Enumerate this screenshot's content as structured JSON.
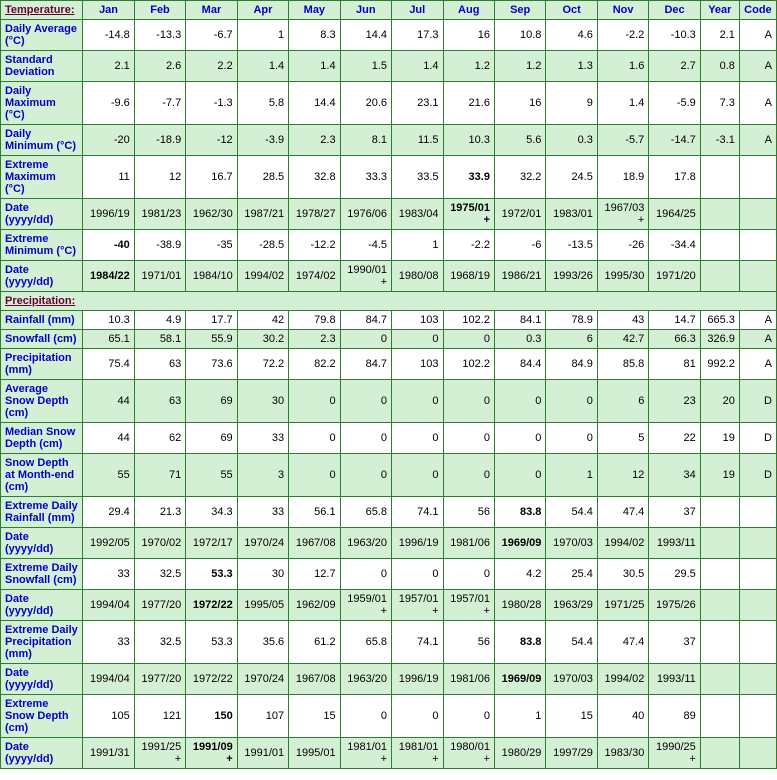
{
  "columns": [
    "Jan",
    "Feb",
    "Mar",
    "Apr",
    "May",
    "Jun",
    "Jul",
    "Aug",
    "Sep",
    "Oct",
    "Nov",
    "Dec",
    "Year",
    "Code"
  ],
  "sections": [
    {
      "title": "Temperature:",
      "rows": [
        {
          "label": "Daily Average (°C)",
          "shade": false,
          "cells": [
            "-14.8",
            "-13.3",
            "-6.7",
            "1",
            "8.3",
            "14.4",
            "17.3",
            "16",
            "10.8",
            "4.6",
            "-2.2",
            "-10.3",
            "2.1",
            "A"
          ]
        },
        {
          "label": "Standard Deviation",
          "shade": true,
          "cells": [
            "2.1",
            "2.6",
            "2.2",
            "1.4",
            "1.4",
            "1.5",
            "1.4",
            "1.2",
            "1.2",
            "1.3",
            "1.6",
            "2.7",
            "0.8",
            "A"
          ]
        },
        {
          "label": "Daily Maximum (°C)",
          "shade": false,
          "cells": [
            "-9.6",
            "-7.7",
            "-1.3",
            "5.8",
            "14.4",
            "20.6",
            "23.1",
            "21.6",
            "16",
            "9",
            "1.4",
            "-5.9",
            "7.3",
            "A"
          ]
        },
        {
          "label": "Daily Minimum (°C)",
          "shade": true,
          "cells": [
            "-20",
            "-18.9",
            "-12",
            "-3.9",
            "2.3",
            "8.1",
            "11.5",
            "10.3",
            "5.6",
            "0.3",
            "-5.7",
            "-14.7",
            "-3.1",
            "A"
          ]
        },
        {
          "label": "Extreme Maximum (°C)",
          "shade": false,
          "cells": [
            "11",
            "12",
            "16.7",
            "28.5",
            "32.8",
            "33.3",
            "33.5",
            "33.9",
            "32.2",
            "24.5",
            "18.9",
            "17.8",
            "",
            ""
          ],
          "bold": [
            7
          ]
        },
        {
          "label": "Date (yyyy/dd)",
          "shade": true,
          "cells": [
            "1996/19",
            "1981/23",
            "1962/30",
            "1987/21",
            "1978/27",
            "1976/06",
            "1983/04",
            "1975/01+",
            "1972/01",
            "1983/01",
            "1967/03+",
            "1964/25",
            "",
            ""
          ],
          "bold": [
            7
          ]
        },
        {
          "label": "Extreme Minimum (°C)",
          "shade": false,
          "cells": [
            "-40",
            "-38.9",
            "-35",
            "-28.5",
            "-12.2",
            "-4.5",
            "1",
            "-2.2",
            "-6",
            "-13.5",
            "-26",
            "-34.4",
            "",
            ""
          ],
          "bold": [
            0
          ]
        },
        {
          "label": "Date (yyyy/dd)",
          "shade": true,
          "cells": [
            "1984/22",
            "1971/01",
            "1984/10",
            "1994/02",
            "1974/02",
            "1990/01+",
            "1980/08",
            "1968/19",
            "1986/21",
            "1993/26",
            "1995/30",
            "1971/20",
            "",
            ""
          ],
          "bold": [
            0
          ]
        }
      ]
    },
    {
      "title": "Precipitation:",
      "rows": [
        {
          "label": "Rainfall (mm)",
          "shade": false,
          "cells": [
            "10.3",
            "4.9",
            "17.7",
            "42",
            "79.8",
            "84.7",
            "103",
            "102.2",
            "84.1",
            "78.9",
            "43",
            "14.7",
            "665.3",
            "A"
          ]
        },
        {
          "label": "Snowfall (cm)",
          "shade": true,
          "cells": [
            "65.1",
            "58.1",
            "55.9",
            "30.2",
            "2.3",
            "0",
            "0",
            "0",
            "0.3",
            "6",
            "42.7",
            "66.3",
            "326.9",
            "A"
          ]
        },
        {
          "label": "Precipitation (mm)",
          "shade": false,
          "cells": [
            "75.4",
            "63",
            "73.6",
            "72.2",
            "82.2",
            "84.7",
            "103",
            "102.2",
            "84.4",
            "84.9",
            "85.8",
            "81",
            "992.2",
            "A"
          ]
        },
        {
          "label": "Average Snow Depth (cm)",
          "shade": true,
          "cells": [
            "44",
            "63",
            "69",
            "30",
            "0",
            "0",
            "0",
            "0",
            "0",
            "0",
            "6",
            "23",
            "20",
            "D"
          ]
        },
        {
          "label": "Median Snow Depth (cm)",
          "shade": false,
          "cells": [
            "44",
            "62",
            "69",
            "33",
            "0",
            "0",
            "0",
            "0",
            "0",
            "0",
            "5",
            "22",
            "19",
            "D"
          ]
        },
        {
          "label": "Snow Depth at Month-end (cm)",
          "shade": true,
          "cells": [
            "55",
            "71",
            "55",
            "3",
            "0",
            "0",
            "0",
            "0",
            "0",
            "1",
            "12",
            "34",
            "19",
            "D"
          ]
        },
        {
          "label": "Extreme Daily Rainfall (mm)",
          "shade": false,
          "cells": [
            "29.4",
            "21.3",
            "34.3",
            "33",
            "56.1",
            "65.8",
            "74.1",
            "56",
            "83.8",
            "54.4",
            "47.4",
            "37",
            "",
            ""
          ],
          "bold": [
            8
          ]
        },
        {
          "label": "Date (yyyy/dd)",
          "shade": true,
          "cells": [
            "1992/05",
            "1970/02",
            "1972/17",
            "1970/24",
            "1967/08",
            "1963/20",
            "1996/19",
            "1981/06",
            "1969/09",
            "1970/03",
            "1994/02",
            "1993/11",
            "",
            ""
          ],
          "bold": [
            8
          ]
        },
        {
          "label": "Extreme Daily Snowfall (cm)",
          "shade": false,
          "cells": [
            "33",
            "32.5",
            "53.3",
            "30",
            "12.7",
            "0",
            "0",
            "0",
            "4.2",
            "25.4",
            "30.5",
            "29.5",
            "",
            ""
          ],
          "bold": [
            2
          ]
        },
        {
          "label": "Date (yyyy/dd)",
          "shade": true,
          "cells": [
            "1994/04",
            "1977/20",
            "1972/22",
            "1995/05",
            "1962/09",
            "1959/01+",
            "1957/01+",
            "1957/01+",
            "1980/28",
            "1963/29",
            "1971/25",
            "1975/26",
            "",
            ""
          ],
          "bold": [
            2
          ]
        },
        {
          "label": "Extreme Daily Precipitation (mm)",
          "shade": false,
          "cells": [
            "33",
            "32.5",
            "53.3",
            "35.6",
            "61.2",
            "65.8",
            "74.1",
            "56",
            "83.8",
            "54.4",
            "47.4",
            "37",
            "",
            ""
          ],
          "bold": [
            8
          ]
        },
        {
          "label": "Date (yyyy/dd)",
          "shade": true,
          "cells": [
            "1994/04",
            "1977/20",
            "1972/22",
            "1970/24",
            "1967/08",
            "1963/20",
            "1996/19",
            "1981/06",
            "1969/09",
            "1970/03",
            "1994/02",
            "1993/11",
            "",
            ""
          ],
          "bold": [
            8
          ]
        },
        {
          "label": "Extreme Snow Depth (cm)",
          "shade": false,
          "cells": [
            "105",
            "121",
            "150",
            "107",
            "15",
            "0",
            "0",
            "0",
            "1",
            "15",
            "40",
            "89",
            "",
            ""
          ],
          "bold": [
            2
          ]
        },
        {
          "label": "Date (yyyy/dd)",
          "shade": true,
          "cells": [
            "1991/31",
            "1991/25+",
            "1991/09+",
            "1991/01",
            "1995/01",
            "1981/01+",
            "1981/01+",
            "1980/01+",
            "1980/29",
            "1997/29",
            "1983/30",
            "1990/25+",
            "",
            ""
          ],
          "bold": [
            2
          ]
        }
      ]
    }
  ]
}
